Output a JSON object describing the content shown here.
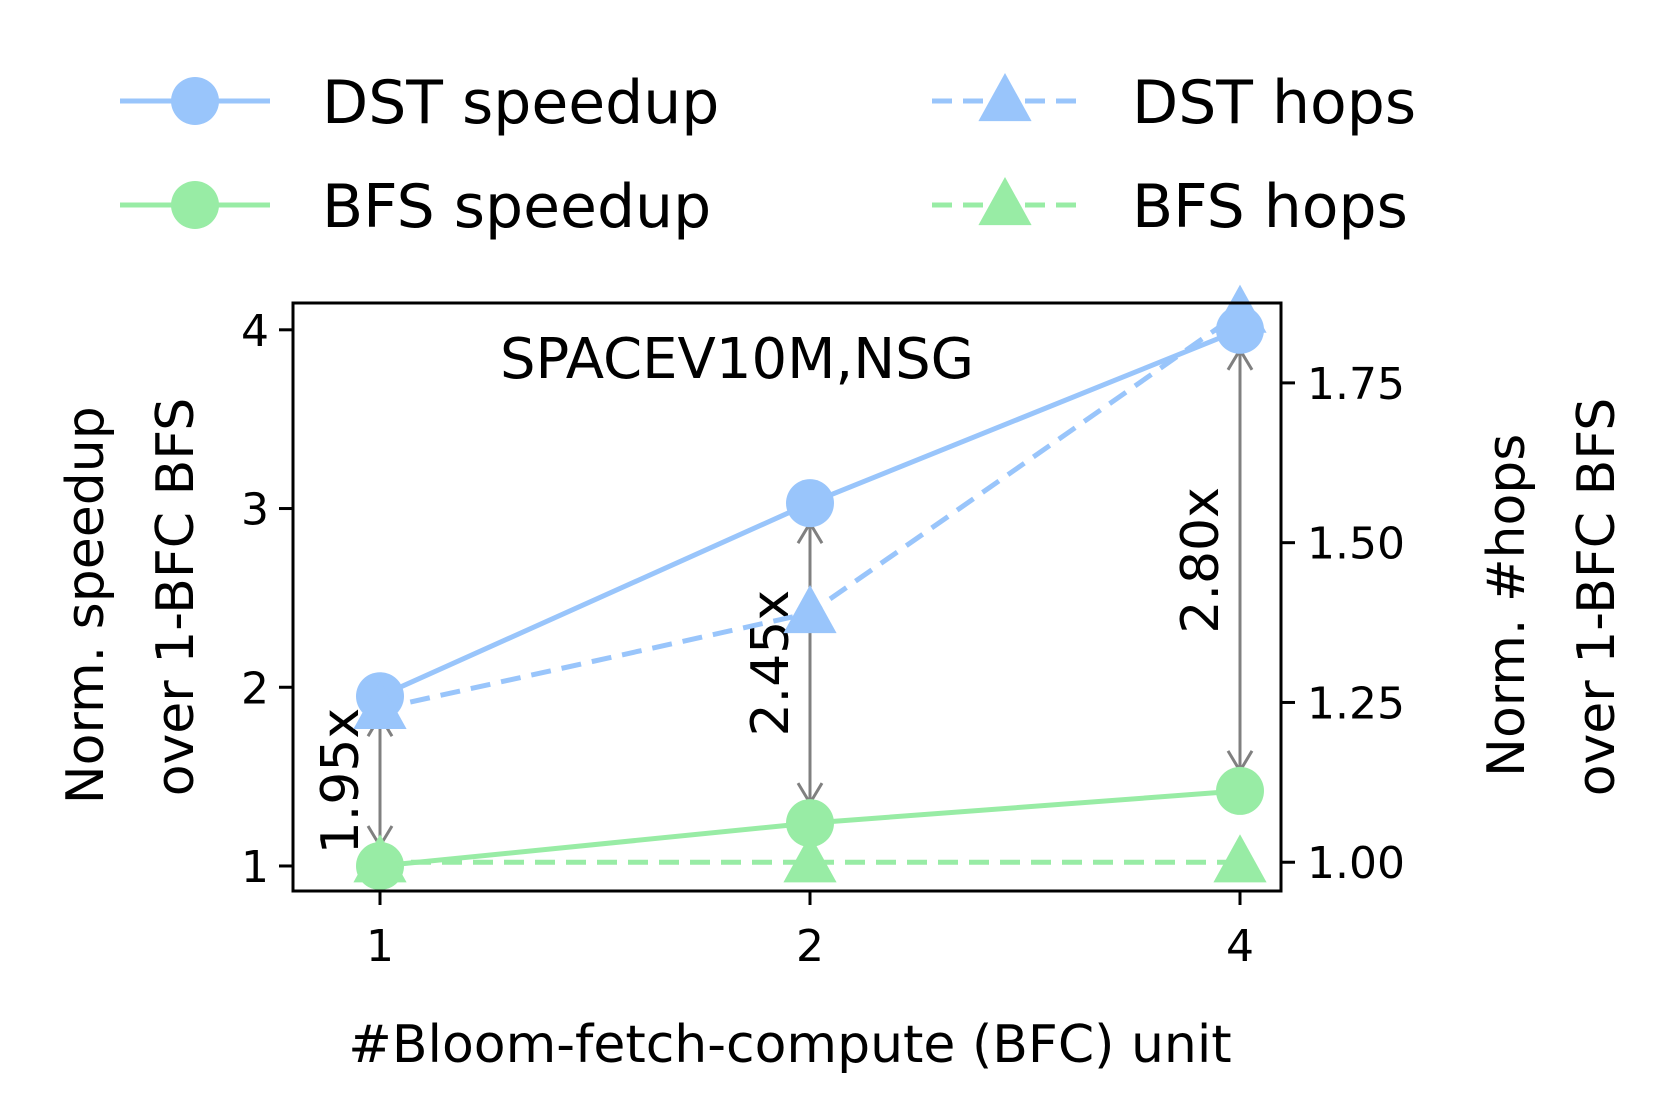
{
  "chart_data": {
    "type": "line",
    "title": "SPACEV10M,NSG",
    "xlabel": "#Bloom-fetch-compute (BFC) unit",
    "ylabel_left": [
      "Norm. speedup",
      "over 1-BFC BFS"
    ],
    "ylabel_right": [
      "Norm. #hops",
      "over 1-BFC BFS"
    ],
    "categories": [
      "1",
      "2",
      "4"
    ],
    "y_left_lim": [
      0.86,
      4.15
    ],
    "y_left_ticks": [
      "1",
      "2",
      "3",
      "4"
    ],
    "y_right_lim": [
      0.955,
      1.875
    ],
    "y_right_ticks": [
      "1.00",
      "1.25",
      "1.50",
      "1.75"
    ],
    "legend_position": "top",
    "series": [
      {
        "name": "DST speedup",
        "axis": "left",
        "style": "solid",
        "marker": "circle",
        "color": "#99c5fb",
        "values": [
          1.95,
          3.03,
          4.0
        ]
      },
      {
        "name": "BFS speedup",
        "axis": "left",
        "style": "solid",
        "marker": "circle",
        "color": "#98eca5",
        "values": [
          1.0,
          1.24,
          1.42
        ]
      },
      {
        "name": "DST hops",
        "axis": "right",
        "style": "dashed",
        "marker": "triangle",
        "color": "#99c5fb",
        "values": [
          1.24,
          1.39,
          1.86
        ]
      },
      {
        "name": "BFS hops",
        "axis": "right",
        "style": "dashed",
        "marker": "triangle",
        "color": "#98eca5",
        "values": [
          1.0,
          1.0,
          1.0
        ]
      }
    ],
    "annotations": [
      {
        "category": "1",
        "text": "1.95x",
        "from": 1.95,
        "to": 1.0
      },
      {
        "category": "2",
        "text": "2.45x",
        "from": 3.03,
        "to": 1.24
      },
      {
        "category": "4",
        "text": "2.80x",
        "from": 4.0,
        "to": 1.42
      }
    ],
    "annotation_color": "#808080"
  }
}
